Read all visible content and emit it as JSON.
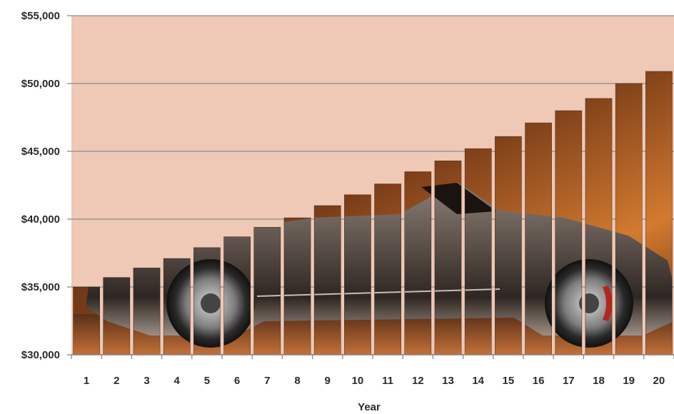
{
  "chart_data": {
    "type": "bar",
    "title": "",
    "xlabel": "Year",
    "ylabel": "",
    "categories": [
      "1",
      "2",
      "3",
      "4",
      "5",
      "6",
      "7",
      "8",
      "9",
      "10",
      "11",
      "12",
      "13",
      "14",
      "15",
      "16",
      "17",
      "18",
      "19",
      "20"
    ],
    "values": [
      35000,
      35700,
      36400,
      37100,
      37900,
      38700,
      39400,
      40100,
      41000,
      41800,
      42600,
      43500,
      44300,
      45200,
      46100,
      47100,
      48000,
      48900,
      50000,
      50900
    ],
    "ylim": [
      30000,
      55000
    ],
    "yticks": [
      30000,
      35000,
      40000,
      45000,
      50000,
      55000
    ],
    "ytick_labels": [
      "$30,000",
      "$35,000",
      "$40,000",
      "$45,000",
      "$50,000",
      "$55,000"
    ],
    "grid": true,
    "legend": "none",
    "bar_fill": "photo of a dark convertible car on an orange background"
  },
  "colors": {
    "plot_background": "#EFC8B6",
    "gridline": "#8A8A8A",
    "axis": "#7F7F7F",
    "text": "#2B2B2B",
    "bar_dark": "#1E1511",
    "bar_orange": "#C8642A",
    "car_body": "#6E6259",
    "wheel": "#9A9A9A",
    "brake": "#B3261E"
  }
}
